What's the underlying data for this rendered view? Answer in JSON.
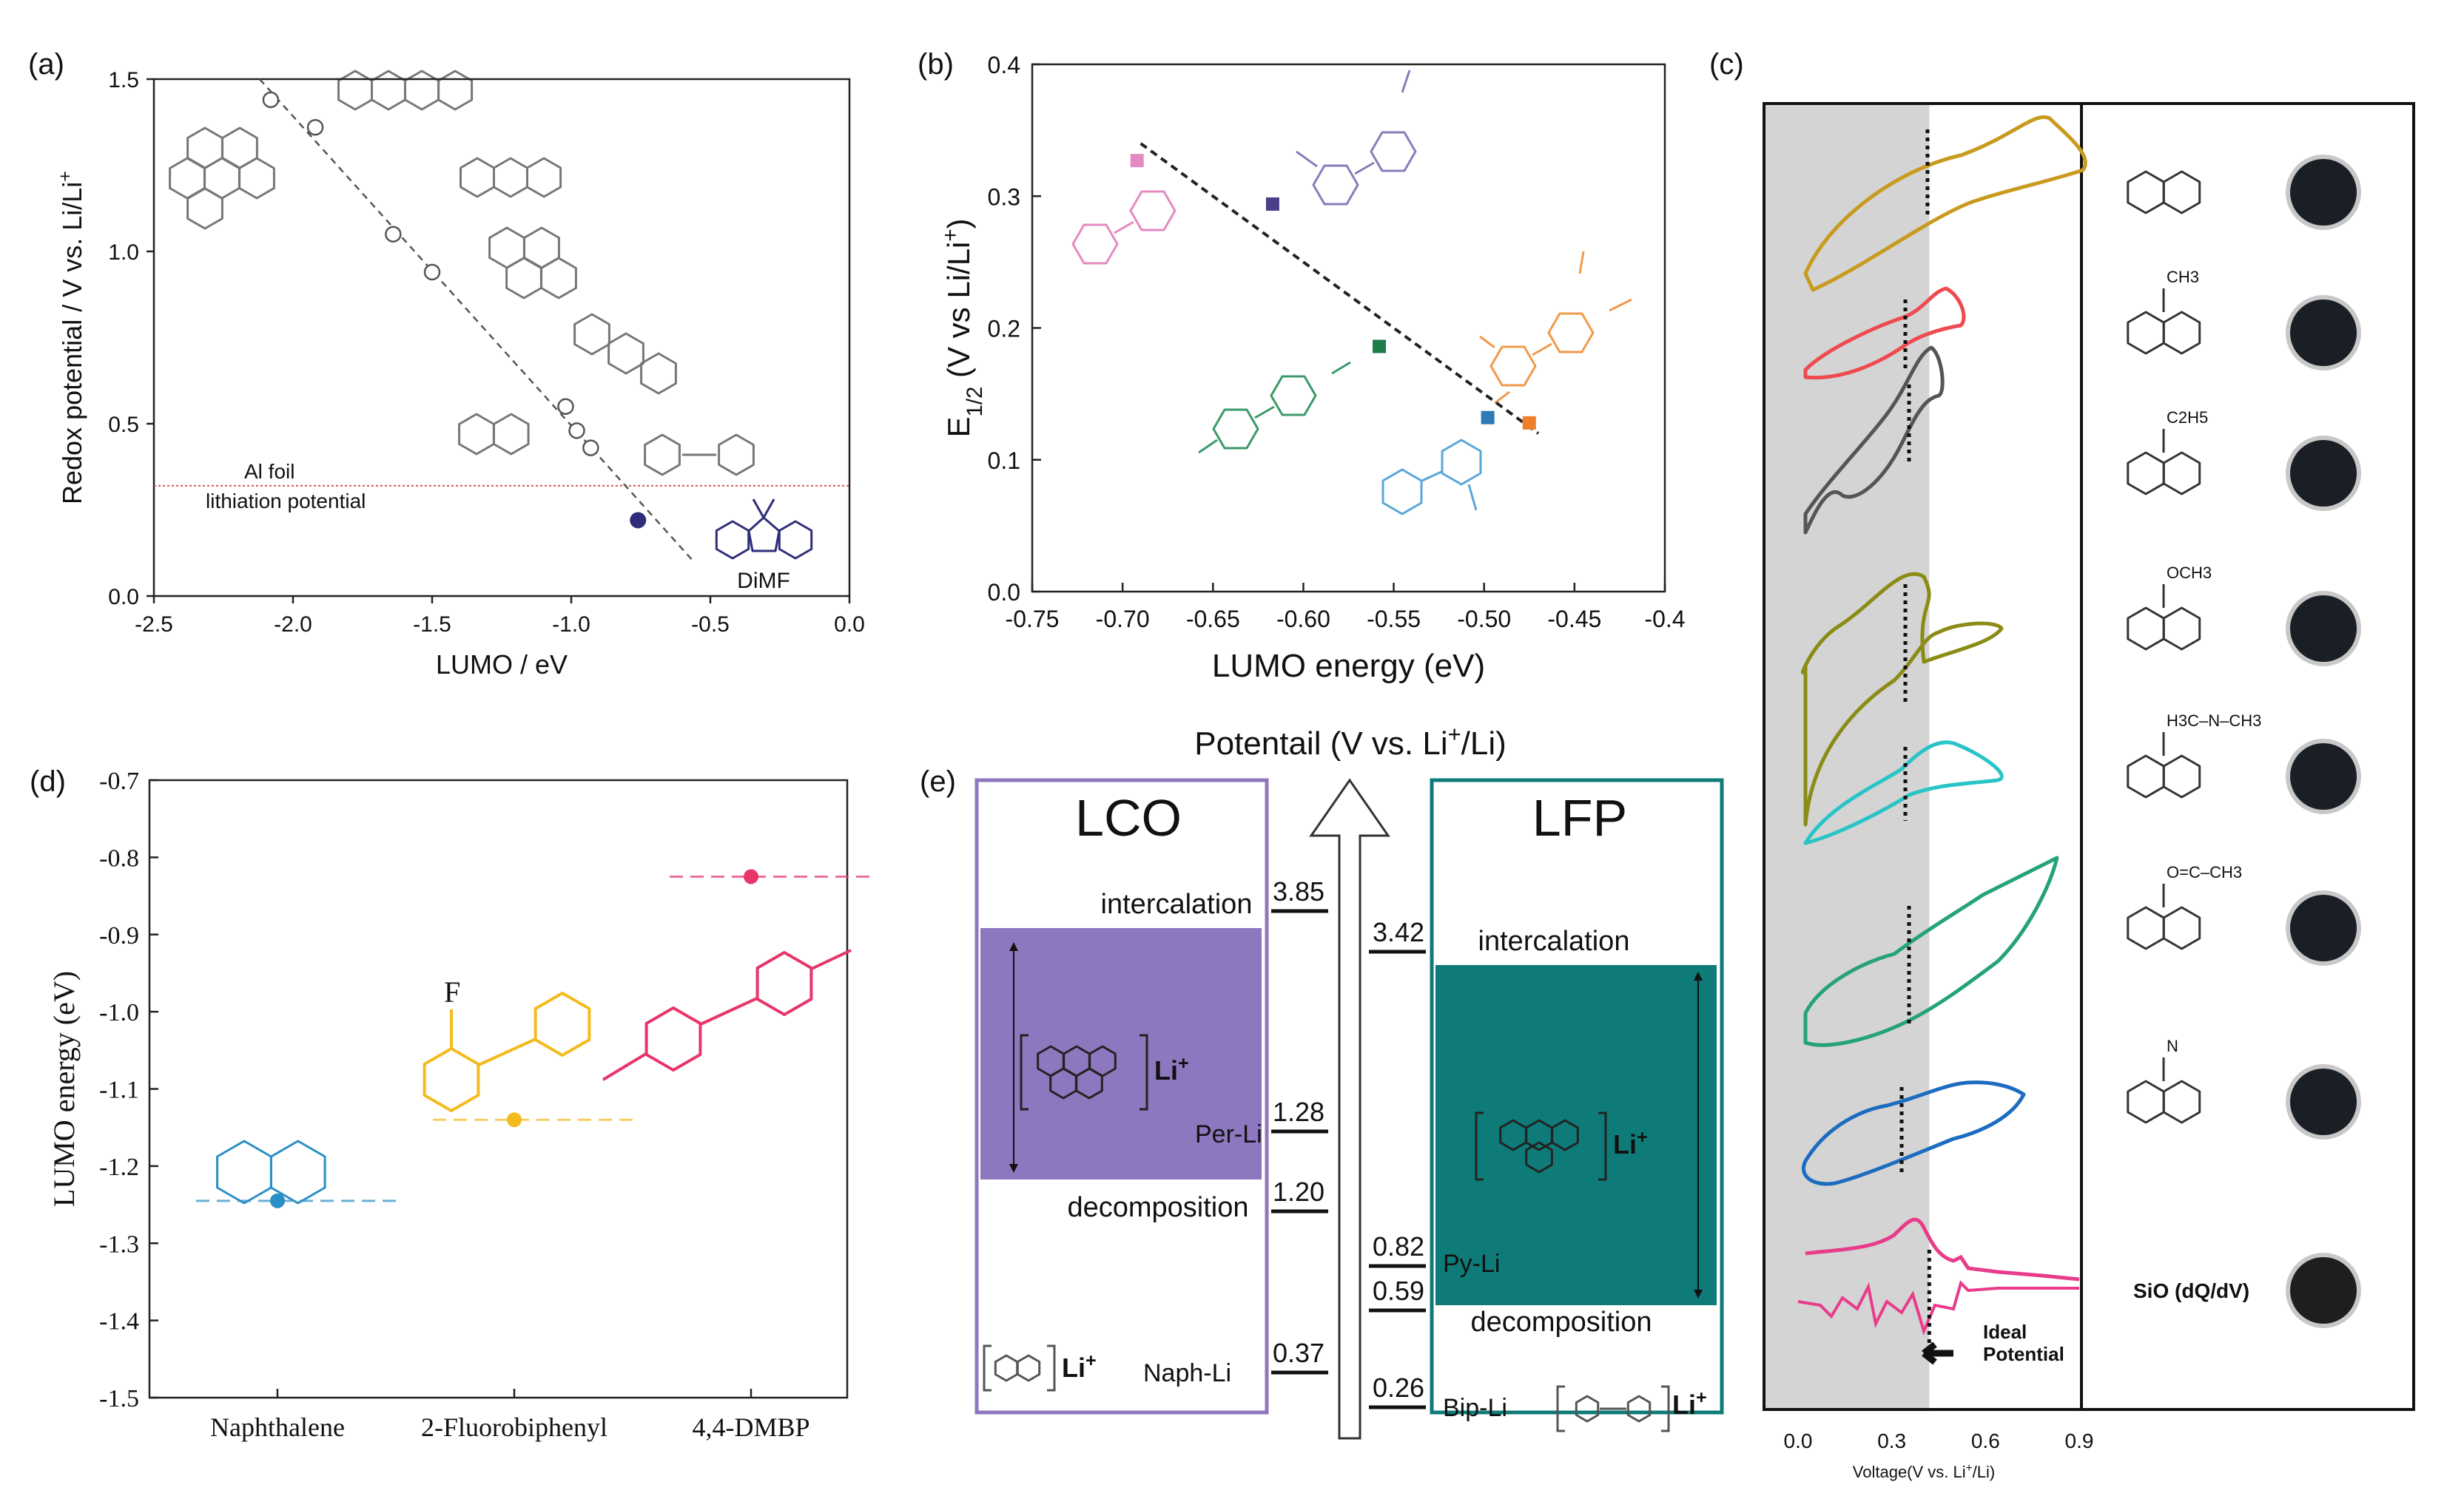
{
  "panel_labels": {
    "a": "(a)",
    "b": "(b)",
    "c": "(c)",
    "d": "(d)",
    "e": "(e)"
  },
  "chart_data": [
    {
      "panel": "a",
      "type": "scatter",
      "xlabel": "LUMO / eV",
      "ylabel": "Redox potential / V vs. Li/Li",
      "ylabel_sup": "+",
      "xlim": [
        -2.5,
        0.0
      ],
      "ylim": [
        0.0,
        1.5
      ],
      "xticks": [
        "-2.5",
        "-2.0",
        "-1.5",
        "-1.0",
        "-0.5",
        "0.0"
      ],
      "yticks": [
        "0.0",
        "0.5",
        "1.0",
        "1.5"
      ],
      "points": [
        {
          "x": -2.08,
          "y": 1.44
        },
        {
          "x": -1.92,
          "y": 1.36
        },
        {
          "x": -1.64,
          "y": 1.05
        },
        {
          "x": -1.5,
          "y": 0.94
        },
        {
          "x": -1.02,
          "y": 0.55
        },
        {
          "x": -0.98,
          "y": 0.48
        },
        {
          "x": -0.93,
          "y": 0.43
        }
      ],
      "highlight_point": {
        "x": -0.76,
        "y": 0.22,
        "color": "#2e2d7a"
      },
      "fit_line": [
        [
          -2.12,
          1.5
        ],
        [
          -0.56,
          0.1
        ]
      ],
      "reference_line": {
        "y": 0.32,
        "label_top": "Al foil",
        "label_bottom": "lithiation potential",
        "color": "#d9534f"
      },
      "molecule_label": "DiMF"
    },
    {
      "panel": "b",
      "type": "scatter",
      "xlabel": "LUMO energy (eV)",
      "ylabel": "E",
      "ylabel_sub": "1/2",
      "ylabel_rest": " (V vs Li/Li",
      "ylabel_sup": "+",
      "ylabel_end": ")",
      "xlim": [
        -0.75,
        -0.4
      ],
      "ylim": [
        0.0,
        0.4
      ],
      "xticks": [
        "-0.75",
        "-0.70",
        "-0.65",
        "-0.60",
        "-0.55",
        "-0.50",
        "-0.45",
        "-0.4"
      ],
      "yticks": [
        "0.0",
        "0.1",
        "0.2",
        "0.3",
        "0.4"
      ],
      "points": [
        {
          "x": -0.692,
          "y": 0.327,
          "color": "#e58ac0"
        },
        {
          "x": -0.617,
          "y": 0.294,
          "color": "#4a3f88"
        },
        {
          "x": -0.558,
          "y": 0.186,
          "color": "#1e7d4a"
        },
        {
          "x": -0.498,
          "y": 0.132,
          "color": "#2c7bb6"
        },
        {
          "x": -0.475,
          "y": 0.128,
          "color": "#f07f2a"
        }
      ],
      "fit_line": [
        [
          -0.69,
          0.34
        ],
        [
          -0.47,
          0.12
        ]
      ]
    },
    {
      "panel": "c",
      "type": "line",
      "xlabel": "Voltage(V vs. Li",
      "xlabel_sup": "+",
      "xlabel_end": "/Li)",
      "xticks": [
        "0.0",
        "0.3",
        "0.6",
        "0.9"
      ],
      "xlim": [
        0.0,
        0.9
      ],
      "ideal_potential_label": [
        "Ideal",
        "Potential"
      ],
      "ideal_potential_v": 0.42,
      "series_colors": [
        "#c89b1e",
        "#ef4a4f",
        "#555555",
        "#8b8b16",
        "#29c4c7",
        "#25a27c",
        "#1c6cc0",
        "#e83c8a"
      ],
      "substituents": [
        "",
        "CH3",
        "C2H5",
        "OCH3",
        "H3C–N–CH3",
        "O=C–CH3",
        "N",
        ""
      ],
      "sio_label": "SiO (dQ/dV)"
    },
    {
      "panel": "d",
      "type": "scatter",
      "ylabel": "LUMO energy (eV)",
      "ylim": [
        -1.5,
        -0.7
      ],
      "yticks": [
        "-0.7",
        "-0.8",
        "-0.9",
        "-1.0",
        "-1.1",
        "-1.2",
        "-1.3",
        "-1.4",
        "-1.5"
      ],
      "categories": [
        "Naphthalene",
        "2-Fluorobiphenyl",
        "4,4-DMBP"
      ],
      "values": [
        -1.245,
        -1.14,
        -0.825
      ],
      "colors": [
        "#2a8fc6",
        "#f4bb1e",
        "#e8356a"
      ],
      "substituent": "F"
    },
    {
      "panel": "e",
      "type": "diagram",
      "axis_title": "Potentail (V vs. Li",
      "axis_title_sup": "+",
      "axis_title_end": "/Li)",
      "left_box": {
        "title": "LCO",
        "intercalation": "intercalation",
        "decomposition": "decomposition",
        "color": "#8d77be"
      },
      "right_box": {
        "title": "LFP",
        "intercalation": "intercalation",
        "decomposition": "decomposition",
        "color": "#0e7b78"
      },
      "left_levels": [
        {
          "value": 3.85,
          "label": "3.85"
        },
        {
          "value": 1.28,
          "label": "1.28",
          "mol": "Per-Li"
        },
        {
          "value": 1.2,
          "label": "1.20"
        },
        {
          "value": 0.37,
          "label": "0.37",
          "mol": "Naph-Li"
        }
      ],
      "right_levels": [
        {
          "value": 3.42,
          "label": "3.42"
        },
        {
          "value": 0.82,
          "label": "0.82",
          "mol": "Py-Li"
        },
        {
          "value": 0.59,
          "label": "0.59"
        },
        {
          "value": 0.26,
          "label": "0.26",
          "mol": "Bip-Li"
        }
      ],
      "li_label": "Li",
      "li_sup": "+"
    }
  ]
}
